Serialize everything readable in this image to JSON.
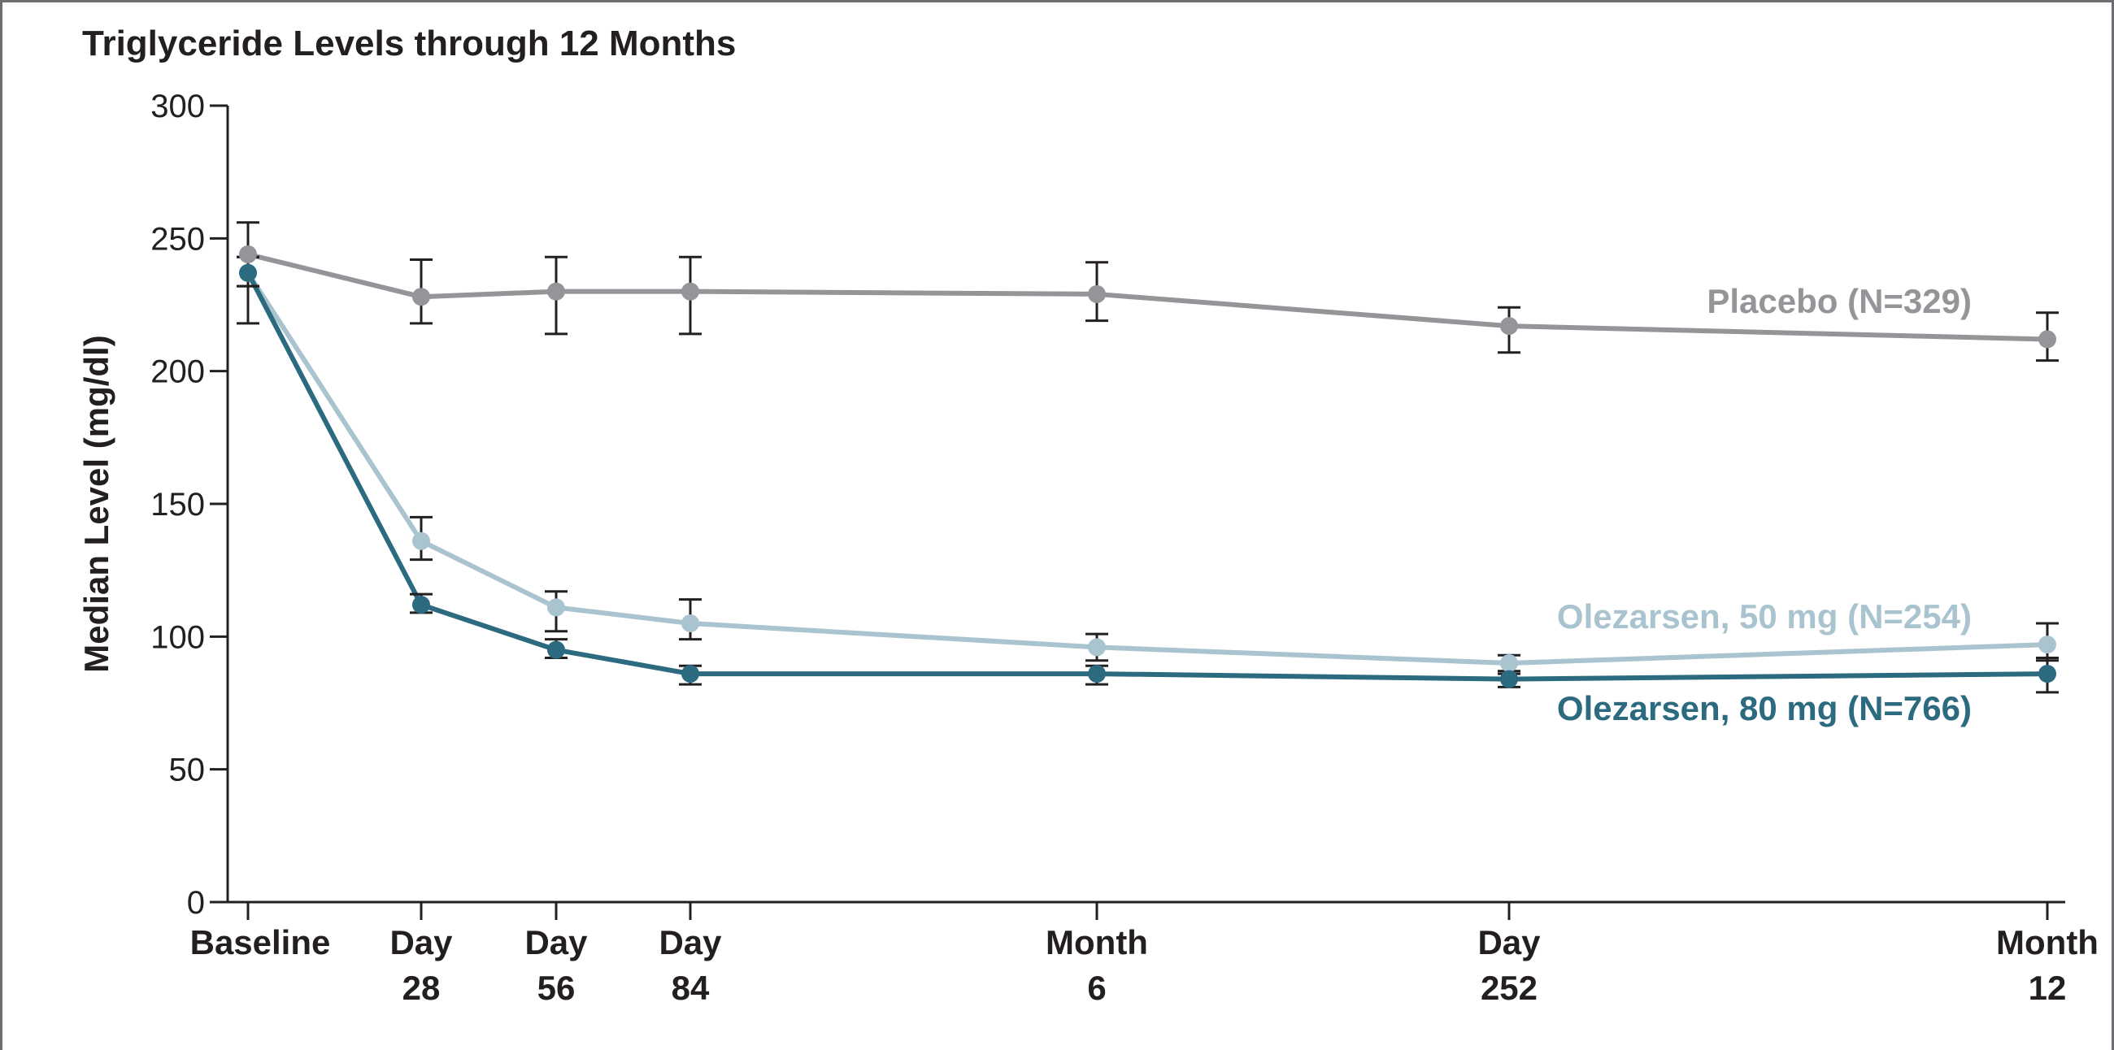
{
  "chart_data": {
    "type": "line",
    "title": "Triglyceride Levels through 12 Months",
    "xlabel": "",
    "ylabel": "Median Level (mg/dl)",
    "ylim": [
      0,
      300
    ],
    "yticks": [
      0,
      50,
      100,
      150,
      200,
      250,
      300
    ],
    "grid": false,
    "x_days": [
      0,
      28,
      56,
      84,
      168,
      252,
      365
    ],
    "categories": [
      [
        "Baseline"
      ],
      [
        "Day",
        "28"
      ],
      [
        "Day",
        "56"
      ],
      [
        "Day",
        "84"
      ],
      [
        "Month",
        "6"
      ],
      [
        "Day",
        "252"
      ],
      [
        "Month",
        "12"
      ]
    ],
    "series": [
      {
        "name": "Placebo (N=329)",
        "color": "#939598",
        "values": [
          244,
          228,
          230,
          230,
          229,
          217,
          212
        ],
        "error_low": [
          218,
          218,
          214,
          214,
          219,
          207,
          204
        ],
        "error_high": [
          256,
          242,
          243,
          243,
          241,
          224,
          222
        ]
      },
      {
        "name": "Olezarsen, 50 mg (N=254)",
        "color": "#a9c3cf",
        "values": [
          237,
          136,
          111,
          105,
          96,
          90,
          97
        ],
        "error_low": [
          232,
          129,
          102,
          99,
          91,
          86,
          91
        ],
        "error_high": [
          243,
          145,
          117,
          114,
          101,
          93,
          105
        ]
      },
      {
        "name": "Olezarsen, 80 mg (N=766)",
        "color": "#2c6a80",
        "values": [
          237,
          112,
          95,
          86,
          86,
          84,
          86
        ],
        "error_low": [
          232,
          109,
          92,
          82,
          82,
          81,
          79
        ],
        "error_high": [
          243,
          116,
          99,
          89,
          89,
          87,
          92
        ]
      }
    ]
  }
}
